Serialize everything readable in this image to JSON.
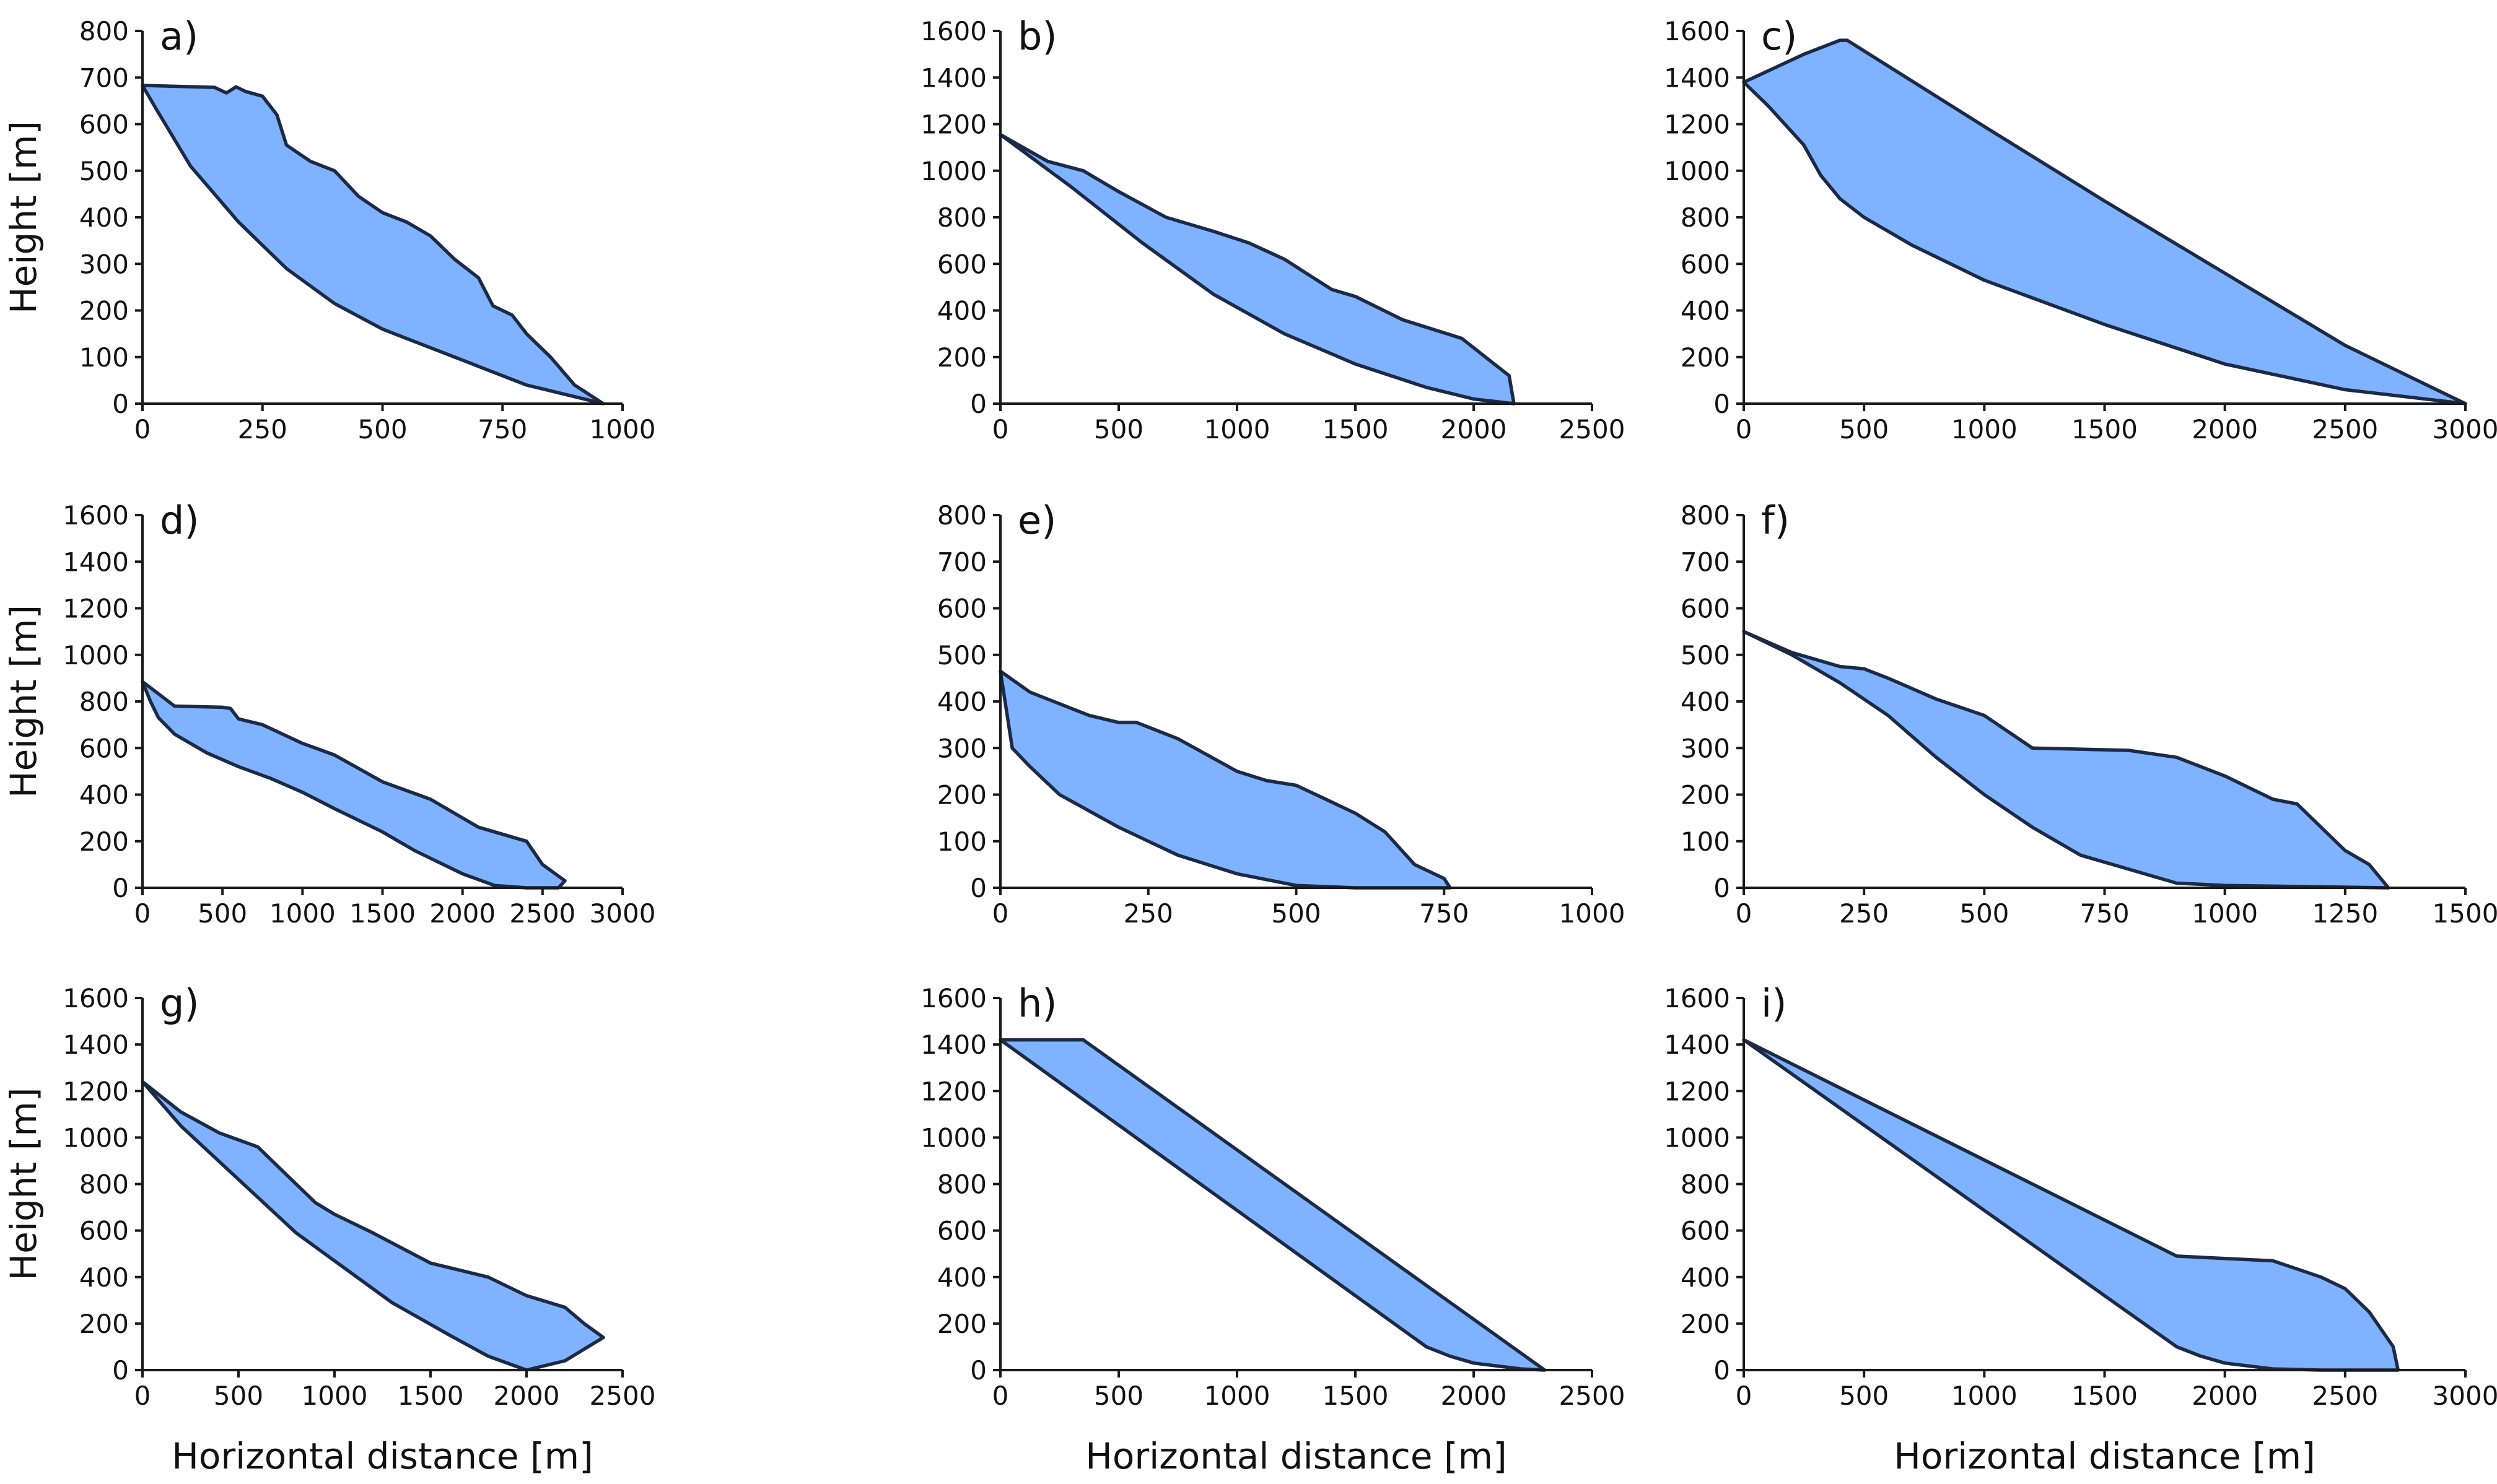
{
  "figure": {
    "xlabel": "Horizontal distance [m]",
    "ylabel": "Height [m]"
  },
  "chart_data": [
    {
      "type": "area",
      "panel": "a)",
      "xticks": [
        0,
        250,
        500,
        750,
        1000
      ],
      "xlim": [
        0,
        1000
      ],
      "yticks": [
        0,
        100,
        200,
        300,
        400,
        500,
        600,
        700,
        800
      ],
      "ylim": [
        0,
        800
      ],
      "xlabel": "",
      "ylabel": "Height [m]",
      "upper": [
        [
          0,
          683
        ],
        [
          150,
          679
        ],
        [
          175,
          667
        ],
        [
          195,
          680
        ],
        [
          215,
          670
        ],
        [
          250,
          660
        ],
        [
          280,
          620
        ],
        [
          300,
          555
        ],
        [
          350,
          520
        ],
        [
          400,
          500
        ],
        [
          450,
          445
        ],
        [
          500,
          410
        ],
        [
          550,
          390
        ],
        [
          600,
          360
        ],
        [
          650,
          310
        ],
        [
          700,
          270
        ],
        [
          730,
          210
        ],
        [
          770,
          190
        ],
        [
          800,
          150
        ],
        [
          850,
          100
        ],
        [
          900,
          40
        ],
        [
          960,
          0
        ]
      ],
      "lower": [
        [
          0,
          683
        ],
        [
          30,
          630
        ],
        [
          100,
          510
        ],
        [
          200,
          390
        ],
        [
          300,
          290
        ],
        [
          400,
          215
        ],
        [
          500,
          160
        ],
        [
          600,
          120
        ],
        [
          700,
          80
        ],
        [
          800,
          40
        ],
        [
          900,
          15
        ],
        [
          960,
          0
        ]
      ]
    },
    {
      "type": "area",
      "panel": "b)",
      "xticks": [
        0,
        500,
        1000,
        1500,
        2000,
        2500
      ],
      "xlim": [
        0,
        2500
      ],
      "yticks": [
        0,
        200,
        400,
        600,
        800,
        1000,
        1200,
        1400,
        1600
      ],
      "ylim": [
        0,
        1600
      ],
      "xlabel": "",
      "ylabel": "",
      "upper": [
        [
          0,
          1155
        ],
        [
          200,
          1040
        ],
        [
          350,
          1000
        ],
        [
          500,
          910
        ],
        [
          700,
          800
        ],
        [
          900,
          740
        ],
        [
          1050,
          690
        ],
        [
          1200,
          620
        ],
        [
          1400,
          490
        ],
        [
          1500,
          460
        ],
        [
          1700,
          360
        ],
        [
          1950,
          280
        ],
        [
          2050,
          200
        ],
        [
          2150,
          120
        ],
        [
          2170,
          0
        ]
      ],
      "lower": [
        [
          0,
          1155
        ],
        [
          300,
          930
        ],
        [
          600,
          690
        ],
        [
          900,
          470
        ],
        [
          1200,
          300
        ],
        [
          1500,
          170
        ],
        [
          1800,
          70
        ],
        [
          2000,
          20
        ],
        [
          2170,
          0
        ]
      ]
    },
    {
      "type": "area",
      "panel": "c)",
      "xticks": [
        0,
        500,
        1000,
        1500,
        2000,
        2500,
        3000
      ],
      "xlim": [
        0,
        3000
      ],
      "yticks": [
        0,
        200,
        400,
        600,
        800,
        1000,
        1200,
        1400,
        1600
      ],
      "ylim": [
        0,
        1600
      ],
      "xlabel": "",
      "ylabel": "",
      "upper": [
        [
          0,
          1380
        ],
        [
          250,
          1500
        ],
        [
          400,
          1560
        ],
        [
          430,
          1560
        ],
        [
          1000,
          1190
        ],
        [
          1500,
          870
        ],
        [
          2000,
          560
        ],
        [
          2500,
          250
        ],
        [
          3000,
          0
        ]
      ],
      "lower": [
        [
          0,
          1380
        ],
        [
          100,
          1280
        ],
        [
          250,
          1110
        ],
        [
          320,
          980
        ],
        [
          400,
          880
        ],
        [
          500,
          800
        ],
        [
          700,
          680
        ],
        [
          1000,
          530
        ],
        [
          1500,
          340
        ],
        [
          2000,
          170
        ],
        [
          2500,
          60
        ],
        [
          3000,
          0
        ]
      ]
    },
    {
      "type": "area",
      "panel": "d)",
      "xticks": [
        0,
        500,
        1000,
        1500,
        2000,
        2500,
        3000
      ],
      "xlim": [
        0,
        3000
      ],
      "yticks": [
        0,
        200,
        400,
        600,
        800,
        1000,
        1200,
        1400,
        1600
      ],
      "ylim": [
        0,
        1600
      ],
      "xlabel": "",
      "ylabel": "Height [m]",
      "upper": [
        [
          0,
          885
        ],
        [
          200,
          780
        ],
        [
          500,
          775
        ],
        [
          550,
          770
        ],
        [
          600,
          725
        ],
        [
          750,
          700
        ],
        [
          1000,
          620
        ],
        [
          1200,
          570
        ],
        [
          1500,
          455
        ],
        [
          1800,
          380
        ],
        [
          2100,
          260
        ],
        [
          2200,
          240
        ],
        [
          2400,
          200
        ],
        [
          2500,
          100
        ],
        [
          2600,
          50
        ],
        [
          2640,
          30
        ],
        [
          2600,
          0
        ]
      ],
      "lower": [
        [
          0,
          885
        ],
        [
          50,
          800
        ],
        [
          100,
          730
        ],
        [
          200,
          660
        ],
        [
          400,
          580
        ],
        [
          600,
          520
        ],
        [
          800,
          470
        ],
        [
          1000,
          410
        ],
        [
          1200,
          340
        ],
        [
          1500,
          240
        ],
        [
          1700,
          160
        ],
        [
          2000,
          60
        ],
        [
          2200,
          10
        ],
        [
          2400,
          0
        ],
        [
          2600,
          0
        ]
      ]
    },
    {
      "type": "area",
      "panel": "e)",
      "xticks": [
        0,
        250,
        500,
        750,
        1000
      ],
      "xlim": [
        0,
        1000
      ],
      "yticks": [
        0,
        100,
        200,
        300,
        400,
        500,
        600,
        700,
        800
      ],
      "ylim": [
        0,
        800
      ],
      "xlabel": "",
      "ylabel": "",
      "upper": [
        [
          0,
          465
        ],
        [
          50,
          420
        ],
        [
          150,
          370
        ],
        [
          200,
          355
        ],
        [
          230,
          355
        ],
        [
          300,
          320
        ],
        [
          400,
          250
        ],
        [
          450,
          230
        ],
        [
          500,
          220
        ],
        [
          550,
          190
        ],
        [
          600,
          160
        ],
        [
          650,
          120
        ],
        [
          700,
          50
        ],
        [
          750,
          20
        ],
        [
          760,
          0
        ]
      ],
      "lower": [
        [
          0,
          465
        ],
        [
          20,
          300
        ],
        [
          50,
          260
        ],
        [
          100,
          200
        ],
        [
          200,
          130
        ],
        [
          300,
          70
        ],
        [
          400,
          30
        ],
        [
          500,
          5
        ],
        [
          600,
          0
        ],
        [
          760,
          0
        ]
      ]
    },
    {
      "type": "area",
      "panel": "f)",
      "xticks": [
        0,
        250,
        500,
        750,
        1000,
        1250,
        1500
      ],
      "xlim": [
        0,
        1500
      ],
      "yticks": [
        0,
        100,
        200,
        300,
        400,
        500,
        600,
        700,
        800
      ],
      "ylim": [
        0,
        800
      ],
      "xlabel": "",
      "ylabel": "",
      "upper": [
        [
          0,
          550
        ],
        [
          100,
          505
        ],
        [
          200,
          475
        ],
        [
          250,
          470
        ],
        [
          300,
          450
        ],
        [
          400,
          405
        ],
        [
          500,
          370
        ],
        [
          600,
          300
        ],
        [
          800,
          295
        ],
        [
          900,
          280
        ],
        [
          1000,
          240
        ],
        [
          1100,
          190
        ],
        [
          1150,
          180
        ],
        [
          1200,
          130
        ],
        [
          1250,
          80
        ],
        [
          1300,
          50
        ],
        [
          1340,
          0
        ]
      ],
      "lower": [
        [
          0,
          550
        ],
        [
          100,
          500
        ],
        [
          200,
          440
        ],
        [
          300,
          370
        ],
        [
          400,
          280
        ],
        [
          500,
          200
        ],
        [
          600,
          130
        ],
        [
          700,
          70
        ],
        [
          800,
          40
        ],
        [
          900,
          10
        ],
        [
          1000,
          5
        ],
        [
          1340,
          0
        ]
      ]
    },
    {
      "type": "area",
      "panel": "g)",
      "xticks": [
        0,
        500,
        1000,
        1500,
        2000,
        2500
      ],
      "xlim": [
        0,
        2500
      ],
      "yticks": [
        0,
        200,
        400,
        600,
        800,
        1000,
        1200,
        1400,
        1600
      ],
      "ylim": [
        0,
        1600
      ],
      "xlabel": "Horizontal distance [m]",
      "ylabel": "Height [m]",
      "upper": [
        [
          0,
          1240
        ],
        [
          200,
          1110
        ],
        [
          400,
          1020
        ],
        [
          600,
          960
        ],
        [
          700,
          880
        ],
        [
          900,
          720
        ],
        [
          1000,
          670
        ],
        [
          1200,
          590
        ],
        [
          1500,
          460
        ],
        [
          1800,
          400
        ],
        [
          2000,
          320
        ],
        [
          2200,
          270
        ],
        [
          2300,
          200
        ],
        [
          2400,
          140
        ],
        [
          2200,
          40
        ],
        [
          2000,
          0
        ]
      ],
      "lower": [
        [
          0,
          1240
        ],
        [
          200,
          1050
        ],
        [
          500,
          820
        ],
        [
          800,
          590
        ],
        [
          1000,
          470
        ],
        [
          1300,
          290
        ],
        [
          1600,
          150
        ],
        [
          1800,
          60
        ],
        [
          2000,
          0
        ]
      ]
    },
    {
      "type": "area",
      "panel": "h)",
      "xticks": [
        0,
        500,
        1000,
        1500,
        2000,
        2500
      ],
      "xlim": [
        0,
        2500
      ],
      "yticks": [
        0,
        200,
        400,
        600,
        800,
        1000,
        1200,
        1400,
        1600
      ],
      "ylim": [
        0,
        1600
      ],
      "xlabel": "Horizontal distance [m]",
      "ylabel": "",
      "upper": [
        [
          0,
          1420
        ],
        [
          350,
          1420
        ],
        [
          2300,
          0
        ]
      ],
      "lower": [
        [
          0,
          1420
        ],
        [
          1800,
          100
        ],
        [
          1900,
          60
        ],
        [
          2000,
          30
        ],
        [
          2200,
          5
        ],
        [
          2300,
          0
        ]
      ]
    },
    {
      "type": "area",
      "panel": "i)",
      "xticks": [
        0,
        500,
        1000,
        1500,
        2000,
        2500,
        3000
      ],
      "xlim": [
        0,
        3000
      ],
      "yticks": [
        0,
        200,
        400,
        600,
        800,
        1000,
        1200,
        1400,
        1600
      ],
      "ylim": [
        0,
        1600
      ],
      "xlabel": "Horizontal distance [m]",
      "ylabel": "",
      "upper": [
        [
          0,
          1420
        ],
        [
          1800,
          490
        ],
        [
          2200,
          470
        ],
        [
          2400,
          400
        ],
        [
          2500,
          350
        ],
        [
          2600,
          250
        ],
        [
          2700,
          100
        ],
        [
          2720,
          0
        ]
      ],
      "lower": [
        [
          0,
          1420
        ],
        [
          1800,
          100
        ],
        [
          1900,
          60
        ],
        [
          2000,
          30
        ],
        [
          2200,
          5
        ],
        [
          2400,
          0
        ],
        [
          2720,
          0
        ]
      ]
    }
  ]
}
